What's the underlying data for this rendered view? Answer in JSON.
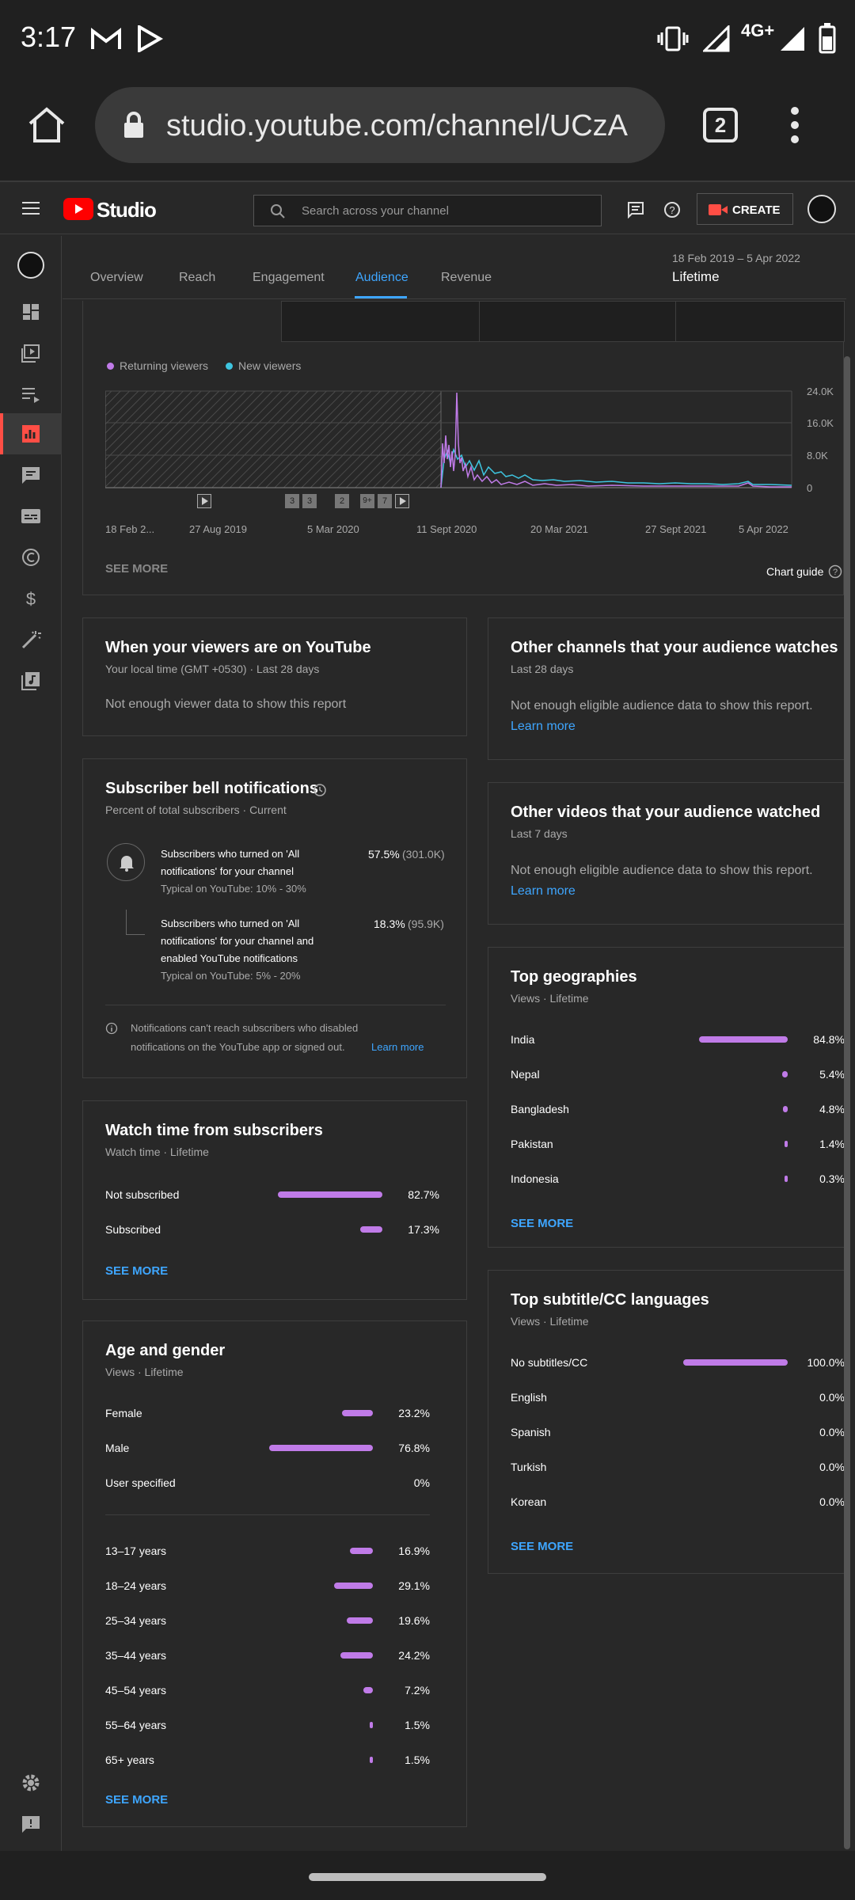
{
  "status_bar": {
    "time": "3:17",
    "network": "4G+"
  },
  "browser": {
    "url": "studio.youtube.com/channel/UCzA",
    "tab_count": "2"
  },
  "header": {
    "brand": "Studio",
    "search_placeholder": "Search across your channel",
    "create_label": "CREATE"
  },
  "tabs": [
    {
      "label": "Overview"
    },
    {
      "label": "Reach"
    },
    {
      "label": "Engagement"
    },
    {
      "label": "Audience"
    },
    {
      "label": "Revenue"
    }
  ],
  "active_tab": "Audience",
  "date_range": "18 Feb 2019 – 5 Apr 2022",
  "period": "Lifetime",
  "viewers_chart": {
    "legend": [
      "Returning viewers",
      "New viewers"
    ],
    "x_labels": [
      "18 Feb 2...",
      "27 Aug 2019",
      "5 Mar 2020",
      "11 Sept 2020",
      "20 Mar 2021",
      "27 Sept 2021",
      "5 Apr 2022"
    ],
    "y_labels": [
      "24.0K",
      "16.0K",
      "8.0K",
      "0"
    ],
    "markers": [
      "3",
      "3",
      "2",
      "9+",
      "7"
    ],
    "see_more": "SEE MORE",
    "chart_guide": "Chart guide"
  },
  "when_viewers": {
    "title": "When your viewers are on YouTube",
    "subtitle": "Your local time (GMT +0530) · Last 28 days",
    "message": "Not enough viewer data to show this report"
  },
  "other_channels": {
    "title": "Other channels that your audience watches",
    "subtitle": "Last 28 days",
    "message": "Not enough eligible audience data to show this report.",
    "link": "Learn more"
  },
  "other_videos": {
    "title": "Other videos that your audience watched",
    "subtitle": "Last 7 days",
    "message": "Not enough eligible audience data to show this report.",
    "link": "Learn more"
  },
  "bell": {
    "title": "Subscriber bell notifications",
    "subtitle": "Percent of total subscribers · Current",
    "rows": [
      {
        "line1": "Subscribers who turned on 'All",
        "line2": "notifications' for your channel",
        "line3": "Typical on YouTube: 10% - 30%",
        "pct": "57.5%",
        "count": "(301.0K)"
      },
      {
        "line1": "Subscribers who turned on 'All",
        "line2": "notifications' for your channel and",
        "line2b": "enabled YouTube notifications",
        "line3": "Typical on YouTube: 5% - 20%",
        "pct": "18.3%",
        "count": "(95.9K)"
      }
    ],
    "note1": "Notifications can't reach subscribers who disabled",
    "note2": "notifications on the YouTube app or signed out.",
    "note_link": "Learn more"
  },
  "watch_time": {
    "title": "Watch time from subscribers",
    "subtitle": "Watch time · Lifetime",
    "rows": [
      {
        "label": "Not subscribed",
        "value": "82.7%",
        "fraction": 0.827
      },
      {
        "label": "Subscribed",
        "value": "17.3%",
        "fraction": 0.173
      }
    ],
    "see_more": "SEE MORE"
  },
  "age_gender": {
    "title": "Age and gender",
    "subtitle": "Views · Lifetime",
    "gender": [
      {
        "label": "Female",
        "value": "23.2%",
        "fraction": 0.232
      },
      {
        "label": "Male",
        "value": "76.8%",
        "fraction": 0.768
      },
      {
        "label": "User specified",
        "value": "0%",
        "fraction": 0
      }
    ],
    "ages": [
      {
        "label": "13–17 years",
        "value": "16.9%",
        "fraction": 0.169
      },
      {
        "label": "18–24 years",
        "value": "29.1%",
        "fraction": 0.291
      },
      {
        "label": "25–34 years",
        "value": "19.6%",
        "fraction": 0.196
      },
      {
        "label": "35–44 years",
        "value": "24.2%",
        "fraction": 0.242
      },
      {
        "label": "45–54 years",
        "value": "7.2%",
        "fraction": 0.072
      },
      {
        "label": "55–64 years",
        "value": "1.5%",
        "fraction": 0.015
      },
      {
        "label": "65+ years",
        "value": "1.5%",
        "fraction": 0.015
      }
    ],
    "see_more": "SEE MORE"
  },
  "geographies": {
    "title": "Top geographies",
    "subtitle": "Views · Lifetime",
    "rows": [
      {
        "label": "India",
        "value": "84.8%",
        "fraction": 0.848
      },
      {
        "label": "Nepal",
        "value": "5.4%",
        "fraction": 0.054
      },
      {
        "label": "Bangladesh",
        "value": "4.8%",
        "fraction": 0.048
      },
      {
        "label": "Pakistan",
        "value": "1.4%",
        "fraction": 0.014
      },
      {
        "label": "Indonesia",
        "value": "0.3%",
        "fraction": 0.003
      }
    ],
    "see_more": "SEE MORE"
  },
  "subtitles": {
    "title": "Top subtitle/CC languages",
    "subtitle": "Views · Lifetime",
    "rows": [
      {
        "label": "No subtitles/CC",
        "value": "100.0%",
        "fraction": 1.0
      },
      {
        "label": "English",
        "value": "0.0%",
        "fraction": 0.0
      },
      {
        "label": "Spanish",
        "value": "0.0%",
        "fraction": 0.0
      },
      {
        "label": "Turkish",
        "value": "0.0%",
        "fraction": 0.0
      },
      {
        "label": "Korean",
        "value": "0.0%",
        "fraction": 0.0
      }
    ],
    "see_more": "SEE MORE"
  },
  "colors": {
    "accent": "#3ea6ff",
    "bar": "#c07be8",
    "returning": "#c07be8",
    "new": "#3ec5e0",
    "brand_red": "#ff0000"
  }
}
